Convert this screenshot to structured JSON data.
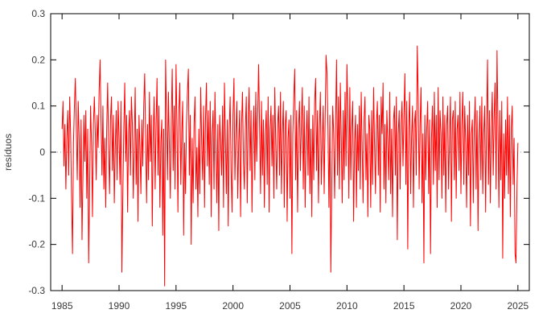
{
  "chart_data": {
    "type": "line",
    "title": "",
    "xlabel": "",
    "ylabel": "resíduos",
    "legend": "none",
    "grid": "zero-line-only",
    "series_name": "resíduos",
    "series_color": "#ff0000",
    "zero_line_color": "#909090",
    "axis_color": "#000000",
    "tick_label_color": "#3a3a3a",
    "background_color": "#ffffff",
    "xlim": [
      1984,
      2026
    ],
    "ylim": [
      -0.3,
      0.3
    ],
    "x_ticks": [
      1985,
      1990,
      1995,
      2000,
      2005,
      2010,
      2015,
      2020,
      2025
    ],
    "x_tick_labels": [
      "1985",
      "1990",
      "1995",
      "2000",
      "2005",
      "2010",
      "2015",
      "2020",
      "2025"
    ],
    "y_ticks": [
      -0.3,
      -0.2,
      -0.1,
      0,
      0.1,
      0.2,
      0.3
    ],
    "y_tick_labels": [
      "-0.3",
      "-0.2",
      "-0.1",
      "0",
      "0.1",
      "0.2",
      "0.3"
    ],
    "x_start": 1985.0,
    "x_step_years": 0.0833333,
    "values": [
      0.05,
      0.11,
      -0.03,
      0.06,
      -0.08,
      0.03,
      0.09,
      -0.05,
      0.12,
      0.04,
      -0.1,
      -0.22,
      0.02,
      0.1,
      0.16,
      0.05,
      -0.06,
      0.11,
      0.03,
      -0.12,
      0.07,
      -0.19,
      -0.05,
      0.08,
      -0.02,
      0.09,
      -0.1,
      0.05,
      -0.24,
      -0.08,
      0.1,
      0.02,
      -0.14,
      0.06,
      0.12,
      0.04,
      -0.06,
      0.08,
      0.01,
      0.13,
      0.2,
      0.07,
      -0.05,
      0.1,
      -0.08,
      0.03,
      -0.12,
      0.05,
      0.15,
      0.02,
      -0.09,
      0.07,
      0.12,
      -0.04,
      0.08,
      -0.11,
      0.01,
      0.09,
      -0.06,
      0.11,
      0.03,
      -0.07,
      0.11,
      -0.26,
      -0.09,
      0.05,
      0.15,
      -0.02,
      0.08,
      -0.13,
      0.04,
      0.09,
      -0.05,
      0.12,
      0.06,
      -0.1,
      0.02,
      0.14,
      -0.07,
      0.05,
      -0.15,
      0.08,
      0.01,
      -0.09,
      0.07,
      -0.03,
      0.1,
      0.17,
      0.03,
      -0.11,
      0.06,
      -0.06,
      0.13,
      -0.02,
      0.08,
      -0.16,
      0.04,
      0.12,
      -0.08,
      0.06,
      0.16,
      -0.05,
      0.1,
      -0.12,
      0.02,
      0.07,
      -0.18,
      0.05,
      -0.29,
      0.2,
      0.08,
      -0.06,
      0.13,
      0.01,
      -0.1,
      0.07,
      0.18,
      -0.04,
      0.1,
      -0.08,
      0.19,
      0.06,
      -0.13,
      0.09,
      0.15,
      -0.07,
      0.04,
      0.11,
      -0.18,
      0.02,
      -0.09,
      0.06,
      0.13,
      0.18,
      -0.05,
      0.08,
      -0.2,
      0.03,
      -0.11,
      0.06,
      0.12,
      -0.08,
      0.01,
      -0.14,
      0.05,
      -0.09,
      0.14,
      0.02,
      -0.06,
      0.1,
      -0.12,
      0.07,
      0.15,
      -0.03,
      0.09,
      -0.07,
      0.11,
      -0.14,
      0.04,
      0.09,
      -0.08,
      0.13,
      0.01,
      -0.11,
      0.06,
      -0.17,
      0.08,
      0.02,
      -0.05,
      0.1,
      -0.12,
      0.15,
      0.03,
      -0.09,
      0.07,
      -0.16,
      0.05,
      0.12,
      -0.04,
      -0.13,
      0.08,
      0.16,
      -0.06,
      0.04,
      0.11,
      -0.1,
      0.02,
      0.09,
      -0.14,
      0.06,
      0.13,
      -0.02,
      -0.08,
      0.05,
      0.12,
      -0.11,
      0.07,
      0.14,
      -0.04,
      0.09,
      -0.13,
      0.03,
      0.1,
      -0.06,
      0.13,
      -0.02,
      0.08,
      0.19,
      0.05,
      -0.09,
      0.11,
      -0.05,
      0.07,
      -0.12,
      0.04,
      0.09,
      -0.07,
      0.12,
      -0.13,
      0.05,
      0.1,
      -0.03,
      0.08,
      -0.1,
      0.14,
      0.02,
      -0.08,
      0.06,
      0.1,
      -0.05,
      0.13,
      -0.09,
      0.04,
      0.11,
      -0.12,
      0.06,
      0.09,
      -0.15,
      0.03,
      0.07,
      -0.1,
      0.08,
      -0.22,
      0.04,
      0.12,
      0.18,
      -0.06,
      0.09,
      -0.13,
      0.05,
      0.11,
      -0.04,
      0.06,
      0.14,
      -0.08,
      0.1,
      -0.12,
      0.03,
      0.09,
      -0.05,
      0.12,
      -0.09,
      0.05,
      -0.14,
      0.08,
      -0.06,
      0.11,
      0.16,
      -0.04,
      0.09,
      -0.11,
      0.05,
      0.13,
      -0.07,
      0.02,
      0.1,
      -0.09,
      0.07,
      0.21,
      0.17,
      0.05,
      -0.12,
      0.08,
      -0.26,
      -0.07,
      0.1,
      0.04,
      -0.1,
      0.06,
      0.2,
      -0.05,
      0.12,
      -0.08,
      0.15,
      0.03,
      -0.11,
      0.09,
      -0.06,
      0.13,
      -0.03,
      0.19,
      0.08,
      -0.1,
      0.14,
      -0.06,
      0.05,
      0.11,
      -0.15,
      0.02,
      0.08,
      -0.12,
      0.06,
      -0.04,
      0.1,
      -0.08,
      0.13,
      0.01,
      -0.11,
      0.07,
      0.12,
      -0.06,
      0.04,
      -0.14,
      0.08,
      0.05,
      -0.12,
      0.09,
      -0.07,
      0.14,
      0.02,
      -0.09,
      0.06,
      0.11,
      -0.05,
      0.08,
      -0.13,
      0.12,
      0.04,
      0.15,
      -0.08,
      0.06,
      -0.11,
      0.09,
      0.02,
      -0.06,
      0.13,
      -0.09,
      0.05,
      -0.14,
      0.07,
      0.1,
      -0.05,
      0.12,
      -0.19,
      0.04,
      0.09,
      -0.08,
      0.06,
      0.11,
      -0.03,
      0.08,
      0.17,
      -0.07,
      0.11,
      -0.21,
      0.05,
      0.13,
      -0.09,
      0.03,
      0.1,
      -0.12,
      0.06,
      0.09,
      -0.05,
      0.23,
      0.12,
      -0.08,
      0.06,
      0.14,
      -0.11,
      0.04,
      -0.24,
      0.08,
      -0.06,
      0.05,
      0.11,
      -0.09,
      0.07,
      -0.22,
      0.03,
      0.1,
      -0.07,
      0.13,
      -0.04,
      0.08,
      -0.12,
      0.14,
      -0.06,
      0.09,
      0.04,
      -0.1,
      0.12,
      -0.05,
      0.08,
      -0.13,
      0.06,
      0.1,
      -0.08,
      0.03,
      0.12,
      -0.15,
      0.07,
      0.09,
      -0.06,
      0.11,
      -0.1,
      0.05,
      0.08,
      -0.04,
      0.13,
      -0.09,
      0.06,
      0.13,
      -0.07,
      0.1,
      0.02,
      -0.12,
      0.08,
      -0.05,
      0.11,
      -0.16,
      0.04,
      0.07,
      -0.11,
      0.05,
      0.12,
      -0.08,
      0.09,
      -0.17,
      0.03,
      0.1,
      -0.06,
      0.12,
      -0.09,
      0.04,
      0.1,
      -0.13,
      0.06,
      0.2,
      -0.07,
      0.09,
      -0.11,
      0.05,
      0.13,
      -0.05,
      0.08,
      0.15,
      -0.08,
      0.22,
      0.06,
      -0.12,
      0.09,
      -0.06,
      0.11,
      -0.23,
      0.04,
      -0.1,
      0.07,
      -0.05,
      0.12,
      -0.09,
      0.08,
      -0.14,
      0.05,
      0.1,
      -0.07,
      0.03,
      -0.22,
      -0.24,
      -0.08,
      0.02
    ]
  }
}
